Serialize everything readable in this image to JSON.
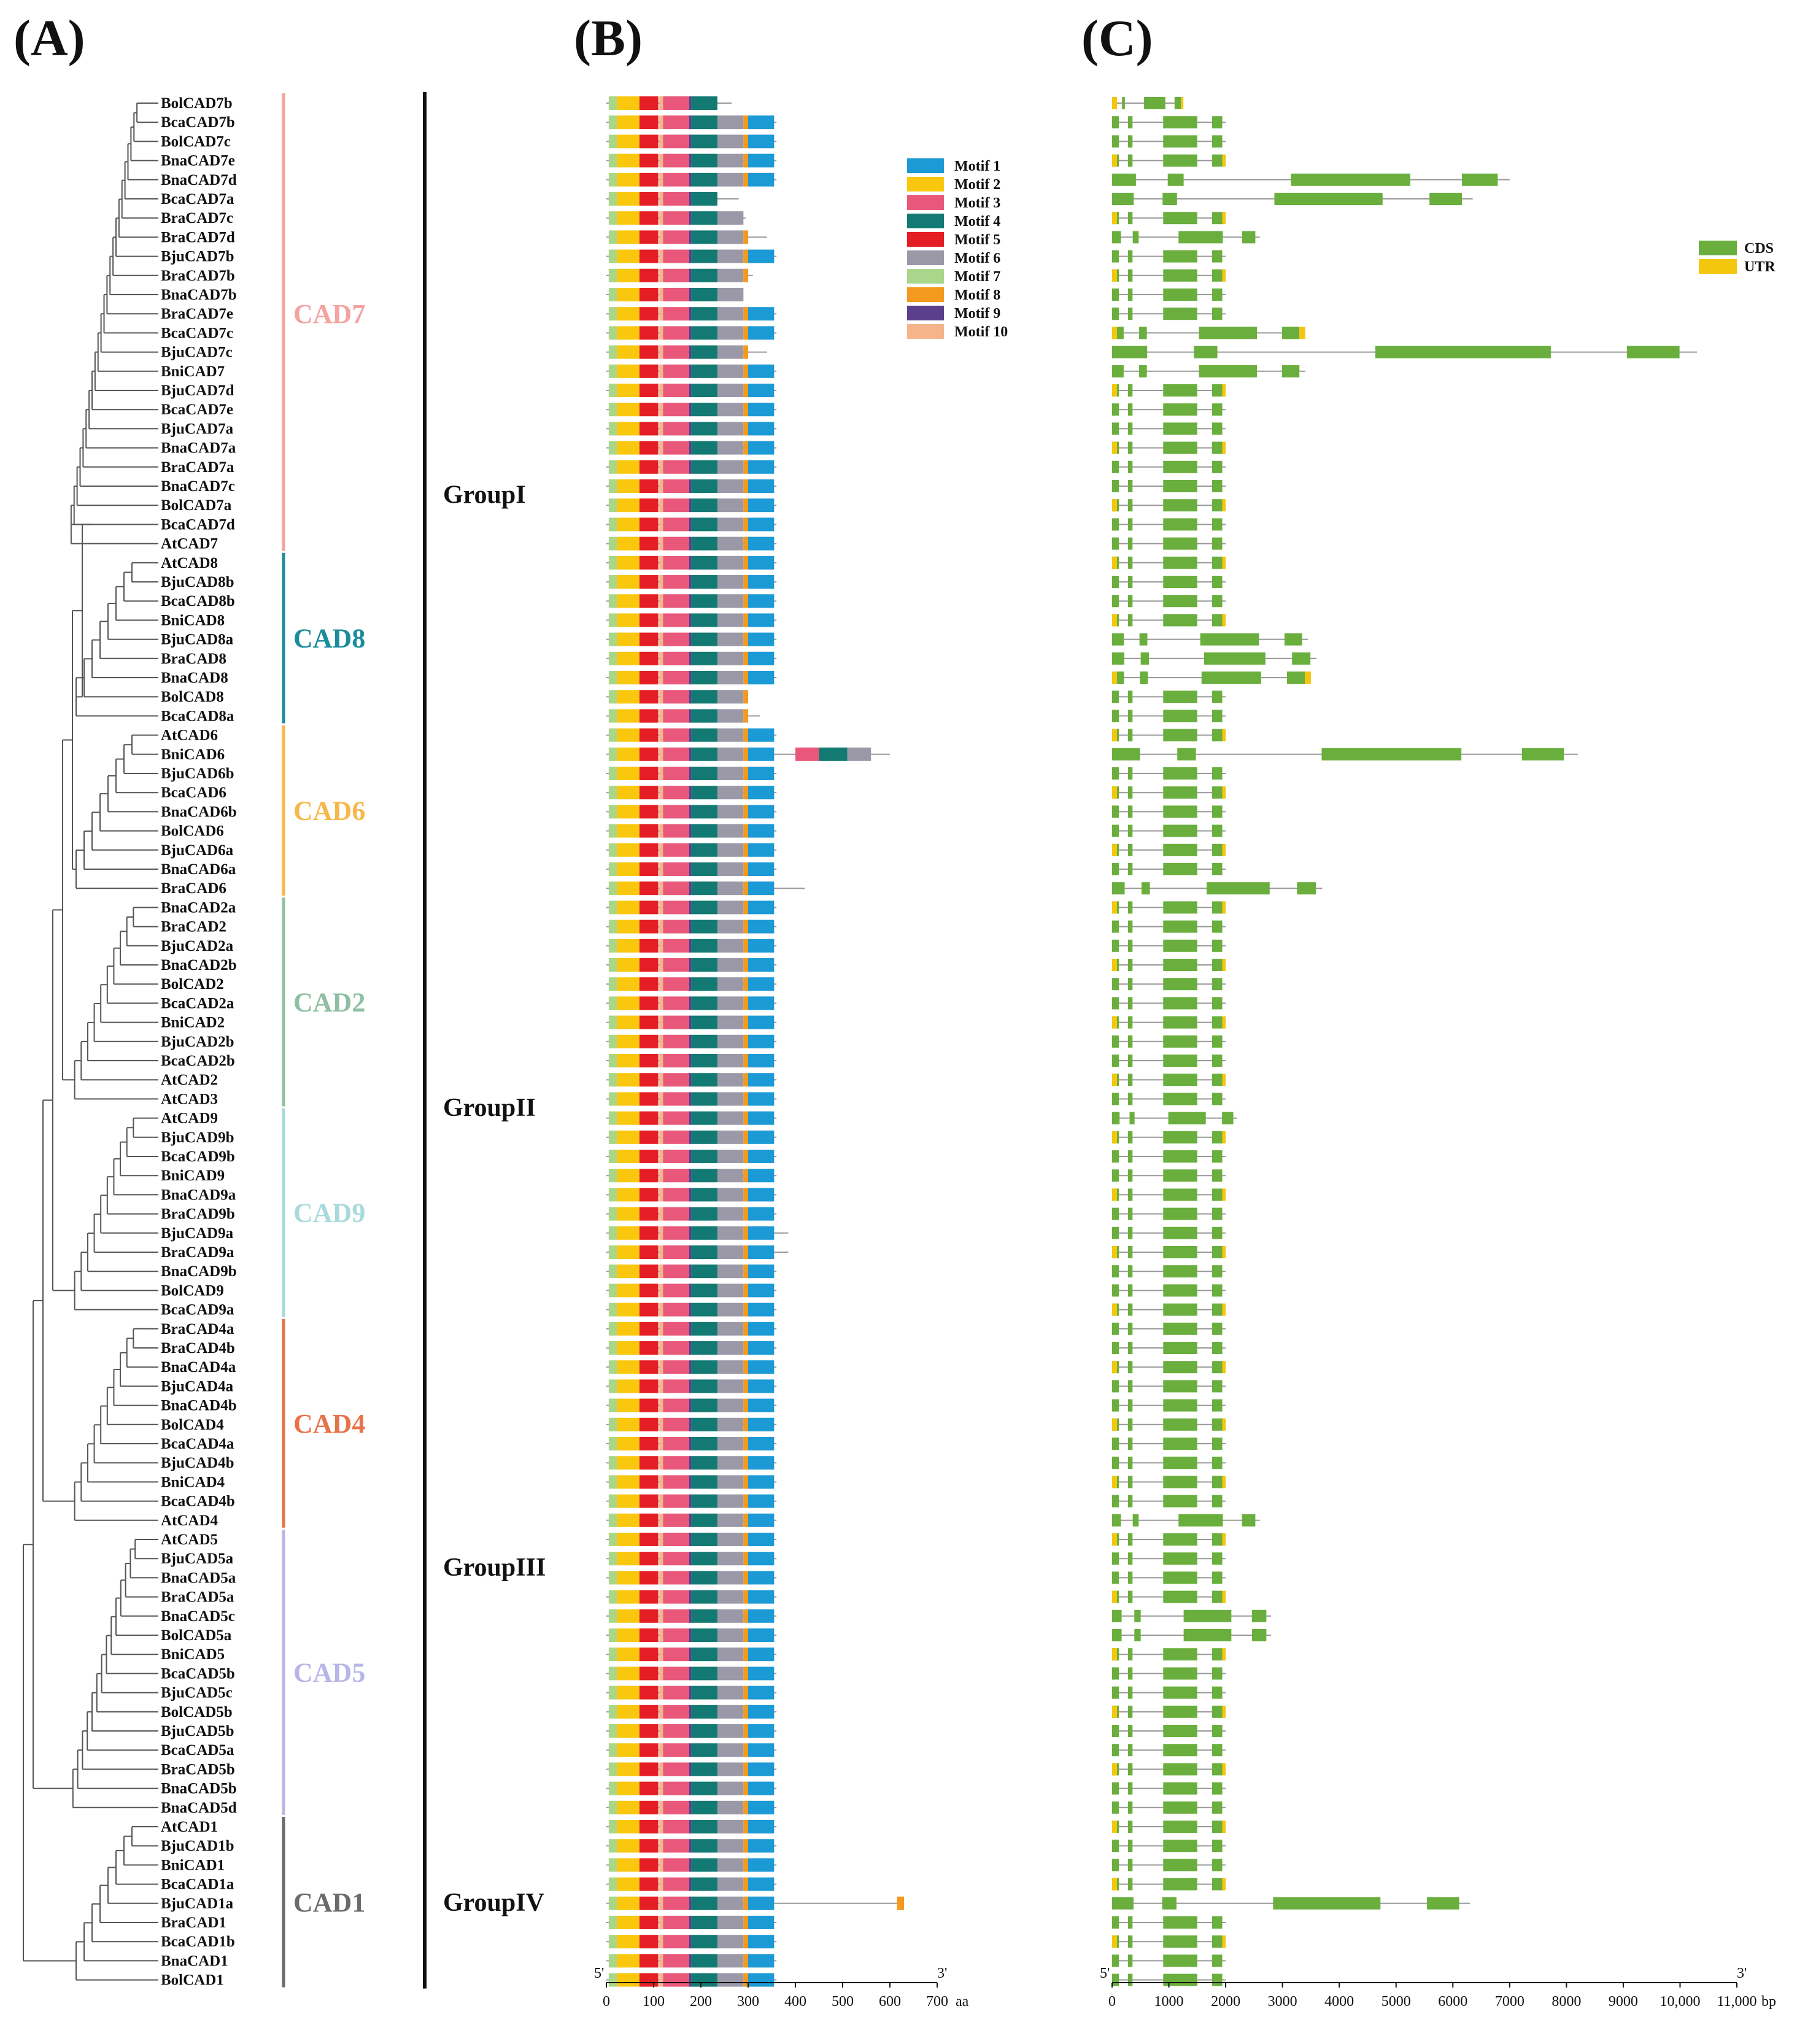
{
  "panels": {
    "a": "(A)",
    "b": "(B)",
    "c": "(C)"
  },
  "genes": [
    "BolCAD7b",
    "BcaCAD7b",
    "BolCAD7c",
    "BnaCAD7e",
    "BnaCAD7d",
    "BcaCAD7a",
    "BraCAD7c",
    "BraCAD7d",
    "BjuCAD7b",
    "BraCAD7b",
    "BnaCAD7b",
    "BraCAD7e",
    "BcaCAD7c",
    "BjuCAD7c",
    "BniCAD7",
    "BjuCAD7d",
    "BcaCAD7e",
    "BjuCAD7a",
    "BnaCAD7a",
    "BraCAD7a",
    "BnaCAD7c",
    "BolCAD7a",
    "BcaCAD7d",
    "AtCAD7",
    "AtCAD8",
    "BjuCAD8b",
    "BcaCAD8b",
    "BniCAD8",
    "BjuCAD8a",
    "BraCAD8",
    "BnaCAD8",
    "BolCAD8",
    "BcaCAD8a",
    "AtCAD6",
    "BniCAD6",
    "BjuCAD6b",
    "BcaCAD6",
    "BnaCAD6b",
    "BolCAD6",
    "BjuCAD6a",
    "BnaCAD6a",
    "BraCAD6",
    "BnaCAD2a",
    "BraCAD2",
    "BjuCAD2a",
    "BnaCAD2b",
    "BolCAD2",
    "BcaCAD2a",
    "BniCAD2",
    "BjuCAD2b",
    "BcaCAD2b",
    "AtCAD2",
    "AtCAD3",
    "AtCAD9",
    "BjuCAD9b",
    "BcaCAD9b",
    "BniCAD9",
    "BnaCAD9a",
    "BraCAD9b",
    "BjuCAD9a",
    "BraCAD9a",
    "BnaCAD9b",
    "BolCAD9",
    "BcaCAD9a",
    "BraCAD4a",
    "BraCAD4b",
    "BnaCAD4a",
    "BjuCAD4a",
    "BnaCAD4b",
    "BolCAD4",
    "BcaCAD4a",
    "BjuCAD4b",
    "BniCAD4",
    "BcaCAD4b",
    "AtCAD4",
    "AtCAD5",
    "BjuCAD5a",
    "BnaCAD5a",
    "BraCAD5a",
    "BnaCAD5c",
    "BolCAD5a",
    "BniCAD5",
    "BcaCAD5b",
    "BjuCAD5c",
    "BolCAD5b",
    "BjuCAD5b",
    "BcaCAD5a",
    "BraCAD5b",
    "BnaCAD5b",
    "BnaCAD5d",
    "AtCAD1",
    "BjuCAD1b",
    "BniCAD1",
    "BcaCAD1a",
    "BjuCAD1a",
    "BraCAD1",
    "BcaCAD1b",
    "BnaCAD1",
    "BolCAD1"
  ],
  "clades": [
    {
      "name": "CAD7",
      "color": "#f4a3a0",
      "first": 0,
      "last": 23
    },
    {
      "name": "CAD8",
      "color": "#1a8d9c",
      "first": 24,
      "last": 32
    },
    {
      "name": "CAD6",
      "color": "#f6b84a",
      "first": 33,
      "last": 41
    },
    {
      "name": "CAD2",
      "color": "#8fbfa2",
      "first": 42,
      "last": 52
    },
    {
      "name": "CAD9",
      "color": "#a8dadc",
      "first": 53,
      "last": 63
    },
    {
      "name": "CAD4",
      "color": "#e8734a",
      "first": 64,
      "last": 74
    },
    {
      "name": "CAD5",
      "color": "#b8b6e8",
      "first": 75,
      "last": 89
    },
    {
      "name": "CAD1",
      "color": "#6b6b6b",
      "first": 90,
      "last": 98
    }
  ],
  "groups": [
    {
      "name": "GroupI",
      "first": 0,
      "last": 41
    },
    {
      "name": "GroupII",
      "first": 42,
      "last": 63
    },
    {
      "name": "GroupIII",
      "first": 64,
      "last": 89
    },
    {
      "name": "GroupIV",
      "first": 90,
      "last": 98
    }
  ],
  "motif_legend": [
    {
      "label": "Motif 1",
      "color": "#1b9ad6"
    },
    {
      "label": "Motif 2",
      "color": "#f9c80e"
    },
    {
      "label": "Motif 3",
      "color": "#e9587a"
    },
    {
      "label": "Motif 4",
      "color": "#127a72"
    },
    {
      "label": "Motif 5",
      "color": "#e51e25"
    },
    {
      "label": "Motif 6",
      "color": "#9b98a8"
    },
    {
      "label": "Motif 7",
      "color": "#a9d68b"
    },
    {
      "label": "Motif 8",
      "color": "#f39a1f"
    },
    {
      "label": "Motif 9",
      "color": "#5b3f8c"
    },
    {
      "label": "Motif 10",
      "color": "#f5b48a"
    }
  ],
  "gene_legend": [
    {
      "label": "CDS",
      "color": "#6aaf3d"
    },
    {
      "label": "UTR",
      "color": "#f5c60e"
    }
  ],
  "motif_axis": {
    "ticks": [
      "0",
      "100",
      "200",
      "300",
      "400",
      "500",
      "600",
      "700"
    ],
    "unit": "aa",
    "start_label": "5'",
    "end_label": "3'",
    "max": 700
  },
  "gene_axis": {
    "ticks": [
      "0",
      "1000",
      "2000",
      "3000",
      "4000",
      "5000",
      "6000",
      "7000",
      "8000",
      "9000",
      "10,000",
      "11,000"
    ],
    "unit": "bp",
    "start_label": "5'",
    "end_label": "3'",
    "max": 11000
  },
  "special_protein_lengths": {
    "BolCAD7b": 265,
    "BcaCAD7a": 280,
    "BraCAD7c": 295,
    "BraCAD7d": 340,
    "BraCAD7b": 310,
    "BnaCAD7b": 290,
    "BjuCAD7c": 340,
    "BolCAD8": 300,
    "BcaCAD8a": 325,
    "BniCAD6": 600,
    "BraCAD6": 420,
    "BjuCAD9a": 385,
    "BraCAD9a": 385,
    "BjuCAD1a": 630
  },
  "special_gene_lengths": {
    "BolCAD7b": 1250,
    "BnaCAD7d": 7000,
    "BcaCAD7a": 6350,
    "BraCAD7d": 2600,
    "BjuCAD7c": 10300,
    "BniCAD7": 3400,
    "BcaCAD7c": 3400,
    "BjuCAD8a": 3450,
    "BraCAD8": 3600,
    "BnaCAD8": 3500,
    "BniCAD6": 8200,
    "BraCAD6": 3700,
    "AtCAD9": 2200,
    "AtCAD4": 2600,
    "BnaCAD5c": 2800,
    "BolCAD5a": 2800,
    "BjuCAD1a": 6300
  }
}
